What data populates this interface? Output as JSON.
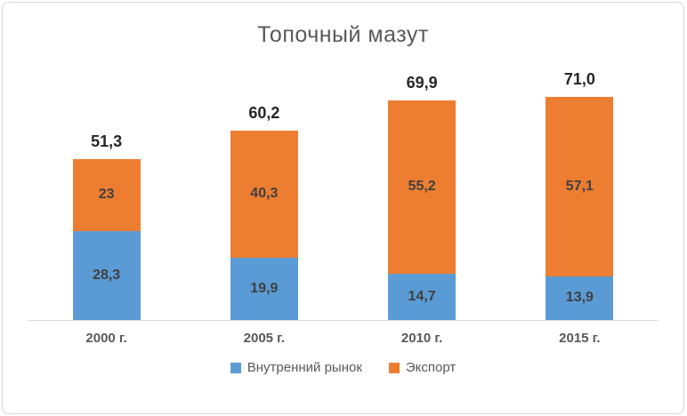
{
  "chart_data": {
    "type": "bar",
    "stacked": true,
    "title": "Топочный мазут",
    "categories": [
      "2000 г.",
      "2005 г.",
      "2010 г.",
      "2015 г."
    ],
    "series": [
      {
        "name": "Внутренний рынок",
        "color": "#5B9BD5",
        "values": [
          28.3,
          19.9,
          14.7,
          13.9
        ],
        "labels": [
          "28,3",
          "19,9",
          "14,7",
          "13,9"
        ]
      },
      {
        "name": "Экспорт",
        "color": "#ED7D31",
        "values": [
          23,
          40.3,
          55.2,
          57.1
        ],
        "labels": [
          "23",
          "40,3",
          "55,2",
          "57,1"
        ]
      }
    ],
    "totals": [
      51.3,
      60.2,
      69.9,
      71.0
    ],
    "total_labels": [
      "51,3",
      "60,2",
      "69,9",
      "71,0"
    ],
    "ylim": [
      0,
      75
    ],
    "xlabel": "",
    "ylabel": "",
    "grid": false,
    "legend_position": "bottom",
    "text_colors": {
      "title": "#595959",
      "total_label": "#262626",
      "segment_label": "#404040",
      "axis_label": "#595959",
      "legend_label": "#595959"
    }
  }
}
